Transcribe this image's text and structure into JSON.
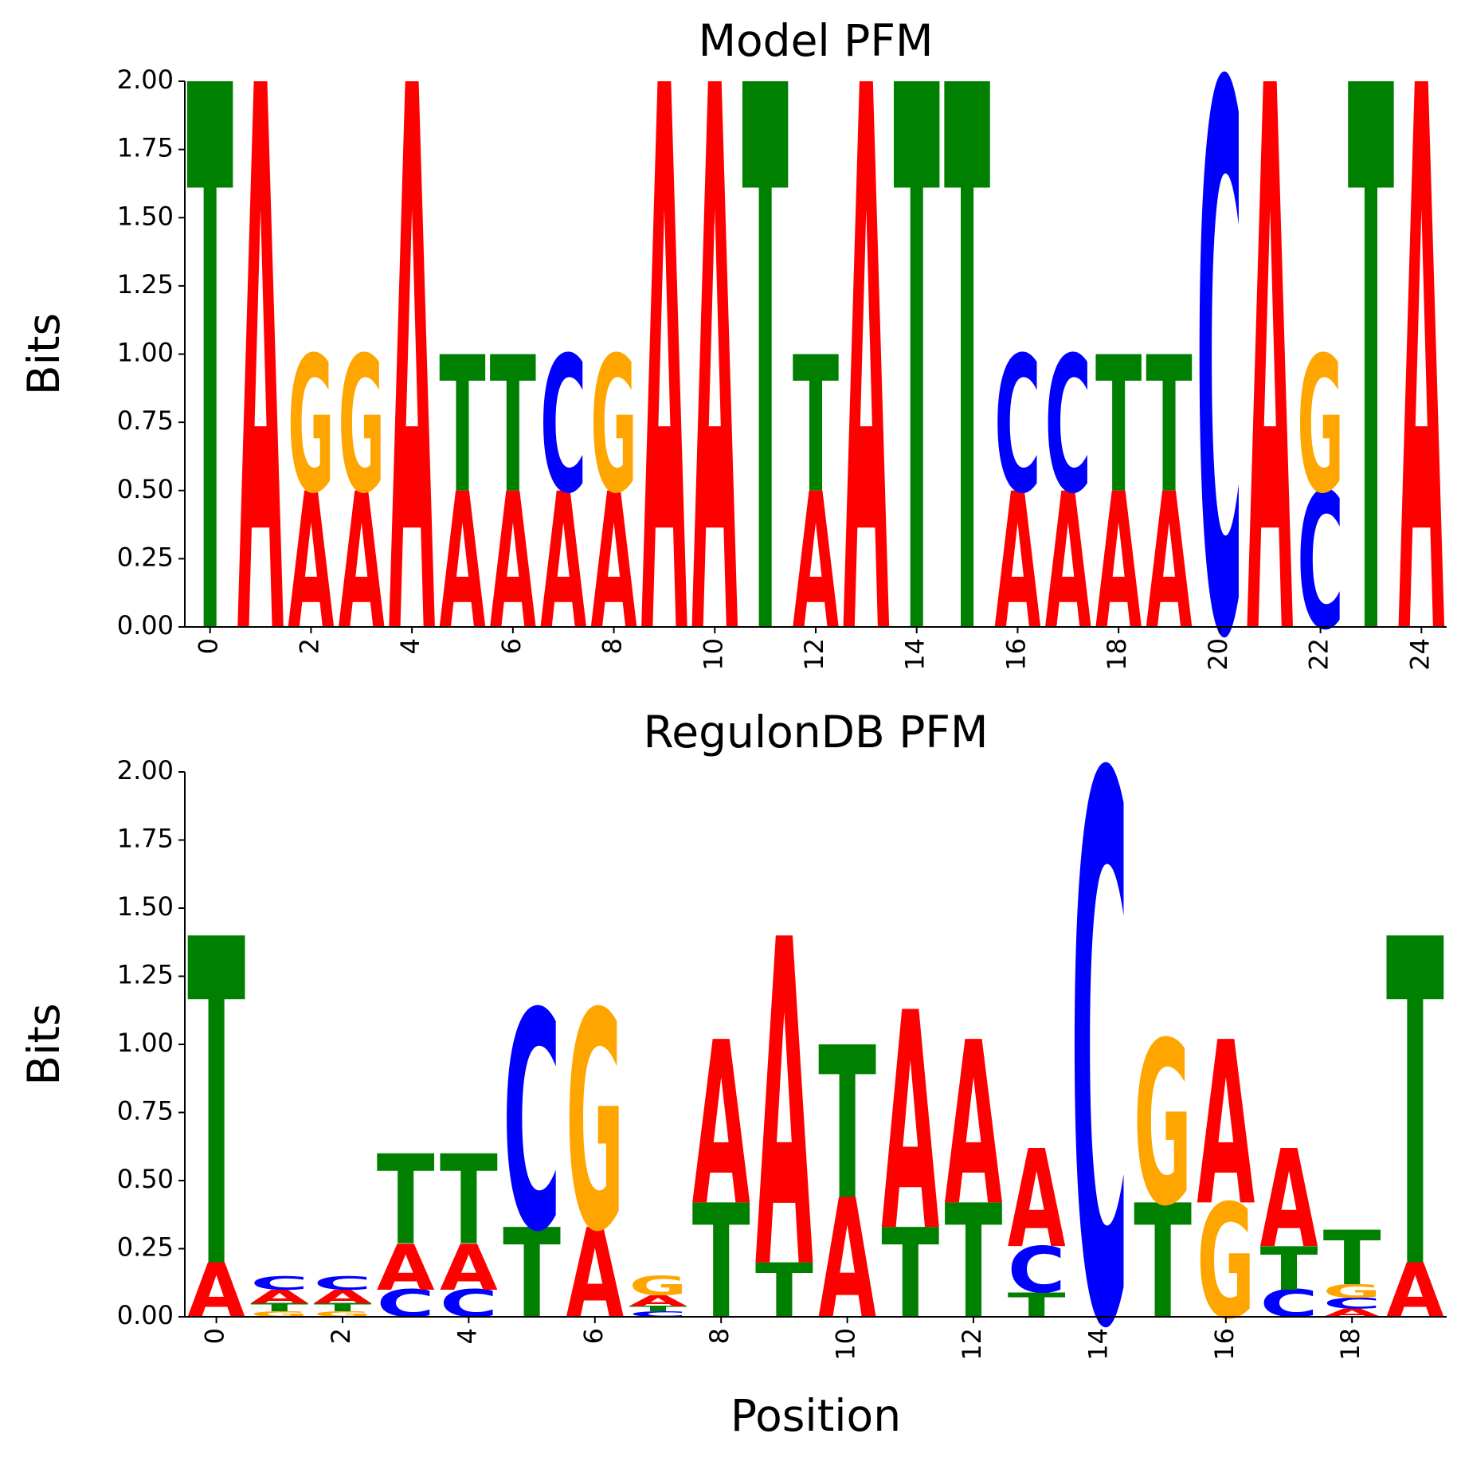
{
  "chart_data": [
    {
      "type": "logo",
      "title": "Model PFM",
      "ylabel": "Bits",
      "x": [
        0,
        1,
        2,
        3,
        4,
        5,
        6,
        7,
        8,
        9,
        10,
        11,
        12,
        13,
        14,
        15,
        16,
        17,
        18,
        19,
        20,
        21,
        22,
        23,
        24
      ],
      "series": [
        {
          "name": "A",
          "color": "#ff0000",
          "values": [
            0,
            2,
            0.5,
            0.5,
            2,
            0.5,
            0.5,
            0.5,
            0.5,
            2,
            2,
            0,
            0.5,
            2,
            0,
            0,
            0.5,
            0.5,
            0.5,
            0.5,
            0,
            2,
            0,
            0,
            2
          ]
        },
        {
          "name": "C",
          "color": "#0000ff",
          "values": [
            0,
            0,
            0,
            0,
            0,
            0,
            0,
            0.5,
            0,
            0,
            0,
            0,
            0,
            0,
            0,
            0,
            0.5,
            0.5,
            0,
            0,
            2,
            0,
            0.5,
            0,
            0
          ]
        },
        {
          "name": "G",
          "color": "#ffa500",
          "values": [
            0,
            0,
            0.5,
            0.5,
            0,
            0,
            0,
            0,
            0.5,
            0,
            0,
            0,
            0,
            0,
            0,
            0,
            0,
            0,
            0,
            0,
            0,
            0,
            0.5,
            0,
            0
          ]
        },
        {
          "name": "T",
          "color": "#008000",
          "values": [
            2,
            0,
            0,
            0,
            0,
            0.5,
            0.5,
            0,
            0,
            0,
            0,
            2,
            0.5,
            0,
            2,
            2,
            0,
            0,
            0.5,
            0.5,
            0,
            0,
            0,
            2,
            0
          ]
        }
      ],
      "xlim": [
        -0.5,
        24.5
      ],
      "xticks": [
        0,
        2,
        4,
        6,
        8,
        10,
        12,
        14,
        16,
        18,
        20,
        22,
        24
      ],
      "ylim": [
        0,
        2
      ],
      "yticks": [
        {
          "value": 0,
          "label": "0.00"
        },
        {
          "value": 0.25,
          "label": "0.25"
        },
        {
          "value": 0.5,
          "label": "0.50"
        },
        {
          "value": 0.75,
          "label": "0.75"
        },
        {
          "value": 1,
          "label": "1.00"
        },
        {
          "value": 1.25,
          "label": "1.25"
        },
        {
          "value": 1.5,
          "label": "1.50"
        },
        {
          "value": 1.75,
          "label": "1.75"
        },
        {
          "value": 2,
          "label": "2.00"
        }
      ]
    },
    {
      "type": "logo",
      "title": "RegulonDB PFM",
      "ylabel": "Bits",
      "xlabel": "Position",
      "x": [
        0,
        1,
        2,
        3,
        4,
        5,
        6,
        7,
        8,
        9,
        10,
        11,
        12,
        13,
        14,
        15,
        16,
        17,
        18,
        19
      ],
      "series": [
        {
          "name": "A",
          "color": "#ff0000",
          "values": [
            0.2,
            0.05,
            0.05,
            0.17,
            0.17,
            0,
            0.33,
            0.04,
            0.6,
            1.2,
            0.44,
            0.8,
            0.6,
            0.36,
            0,
            0,
            0.6,
            0.36,
            0.03,
            0.2
          ]
        },
        {
          "name": "C",
          "color": "#0000ff",
          "values": [
            0,
            0.05,
            0.05,
            0.1,
            0.1,
            0.8,
            0,
            0.02,
            0,
            0,
            0,
            0,
            0,
            0.17,
            2,
            0,
            0,
            0.1,
            0.04,
            0
          ]
        },
        {
          "name": "G",
          "color": "#ffa500",
          "values": [
            0,
            0.02,
            0.02,
            0,
            0,
            0,
            0.8,
            0.07,
            0,
            0,
            0,
            0,
            0,
            0,
            0,
            0.6,
            0.42,
            0,
            0.05,
            0
          ]
        },
        {
          "name": "T",
          "color": "#008000",
          "values": [
            1.2,
            0.03,
            0.03,
            0.33,
            0.33,
            0.33,
            0,
            0.02,
            0.42,
            0.2,
            0.56,
            0.33,
            0.42,
            0.09,
            0,
            0.42,
            0,
            0.16,
            0.2,
            1.2
          ]
        }
      ],
      "xlim": [
        -0.5,
        19.5
      ],
      "xticks": [
        0,
        2,
        4,
        6,
        8,
        10,
        12,
        14,
        16,
        18
      ],
      "ylim": [
        0,
        2
      ],
      "yticks": [
        {
          "value": 0,
          "label": "0.00"
        },
        {
          "value": 0.25,
          "label": "0.25"
        },
        {
          "value": 0.5,
          "label": "0.50"
        },
        {
          "value": 0.75,
          "label": "0.75"
        },
        {
          "value": 1,
          "label": "1.00"
        },
        {
          "value": 1.25,
          "label": "1.25"
        },
        {
          "value": 1.5,
          "label": "1.50"
        },
        {
          "value": 1.75,
          "label": "1.75"
        },
        {
          "value": 2,
          "label": "2.00"
        }
      ]
    }
  ]
}
